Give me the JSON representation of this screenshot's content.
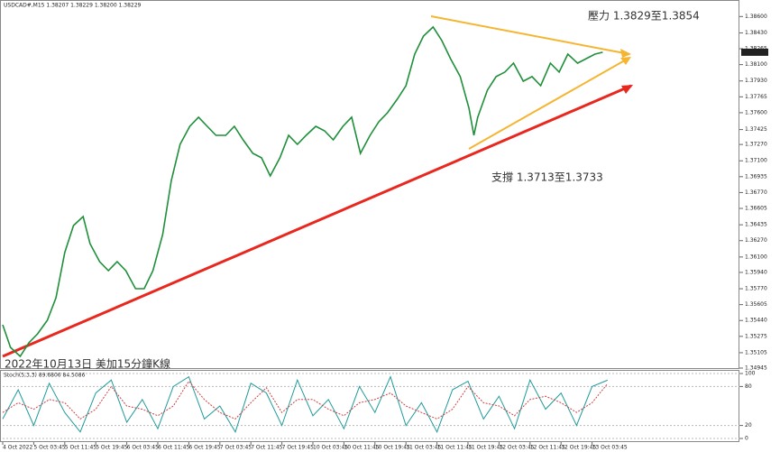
{
  "header": "USDCAD#,M15  1.38207 1.38229 1.38200 1.38229",
  "chart_data": [
    {
      "type": "line",
      "title": "2022年10月13日 美加15分鐘K線",
      "annotations": [
        "壓力 1.3829至1.3854",
        "支撐 1.3713至1.3733"
      ],
      "current_price_label": "1.38229",
      "x": [
        0,
        8,
        18,
        27,
        36,
        46,
        55,
        64,
        73,
        83,
        90,
        100,
        109,
        118,
        127,
        137,
        146,
        155,
        165,
        174,
        183,
        193,
        202,
        211,
        220,
        230,
        239,
        248,
        258,
        267,
        276,
        286,
        295,
        304,
        313,
        323,
        332,
        341,
        351,
        360,
        369,
        379,
        388,
        397,
        407,
        416,
        425,
        434,
        444,
        453,
        462,
        472,
        481,
        486,
        490,
        500,
        509,
        518,
        527,
        537,
        546,
        555,
        565,
        574,
        583,
        593,
        602,
        611,
        619
      ],
      "series": [
        {
          "color": "#1f8f3a",
          "values": [
            1.35395,
            1.35161,
            1.35067,
            1.35208,
            1.35301,
            1.35442,
            1.35677,
            1.36146,
            1.36427,
            1.36521,
            1.36239,
            1.36052,
            1.35958,
            1.36052,
            1.35958,
            1.3577,
            1.3577,
            1.35958,
            1.36333,
            1.36896,
            1.37271,
            1.37459,
            1.37553,
            1.37459,
            1.37365,
            1.37365,
            1.37459,
            1.37318,
            1.37177,
            1.37131,
            1.36943,
            1.37131,
            1.37365,
            1.37271,
            1.37365,
            1.37459,
            1.37412,
            1.37318,
            1.37459,
            1.37553,
            1.37177,
            1.37365,
            1.37506,
            1.376,
            1.3774,
            1.37881,
            1.38209,
            1.38397,
            1.38491,
            1.3835,
            1.38162,
            1.37975,
            1.37646,
            1.37365,
            1.37553,
            1.37834,
            1.37975,
            1.38022,
            1.38115,
            1.37928,
            1.37975,
            1.37881,
            1.38115,
            1.38022,
            1.38209,
            1.38115,
            1.38162,
            1.38209,
            1.38229
          ]
        }
      ],
      "xlim": [
        0,
        760
      ],
      "ylim": [
        1.34945,
        1.38753
      ],
      "yticks": [
        1.34945,
        1.35105,
        1.35275,
        {
          "value": 1.3544,
          "label": "1.35440"
        },
        1.35605,
        {
          "value": 1.3577,
          "label": "1.35770"
        },
        {
          "value": 1.3594,
          "label": "1.35940"
        },
        {
          "value": 1.361,
          "label": "1.36100"
        },
        {
          "value": 1.3627,
          "label": "1.36270"
        },
        1.36435,
        1.36605,
        {
          "value": 1.3677,
          "label": "1.36770"
        },
        1.36935,
        {
          "value": 1.371,
          "label": "1.37100"
        },
        {
          "value": 1.3727,
          "label": "1.37270"
        },
        1.37425,
        {
          "value": 1.376,
          "label": "1.37600"
        },
        1.37765,
        {
          "value": 1.3793,
          "label": "1.37930"
        },
        {
          "value": 1.381,
          "label": "1.38100"
        },
        1.38265,
        {
          "value": 1.3843,
          "label": "1.38430"
        },
        {
          "value": 1.386,
          "label": "1.38600"
        }
      ]
    },
    {
      "type": "line",
      "title": "Stoch(5,3,3) 89.6806 84.5086",
      "x": [
        0,
        16,
        32,
        48,
        64,
        80,
        96,
        112,
        128,
        144,
        160,
        176,
        192,
        208,
        224,
        240,
        256,
        272,
        288,
        304,
        320,
        336,
        352,
        368,
        384,
        400,
        416,
        432,
        448,
        464,
        480,
        496,
        512,
        528,
        544,
        560,
        576,
        592,
        608,
        624
      ],
      "series": [
        {
          "color": "#1f9a9a",
          "values": [
            30,
            75,
            20,
            85,
            40,
            10,
            70,
            90,
            25,
            60,
            15,
            80,
            95,
            30,
            50,
            10,
            85,
            70,
            20,
            90,
            35,
            60,
            15,
            80,
            40,
            95,
            20,
            55,
            10,
            75,
            88,
            30,
            65,
            15,
            90,
            45,
            70,
            20,
            80,
            89.6806
          ]
        },
        {
          "color": "#d04040",
          "values": [
            40,
            55,
            45,
            60,
            55,
            30,
            45,
            80,
            50,
            45,
            35,
            50,
            88,
            60,
            40,
            30,
            55,
            78,
            40,
            60,
            60,
            45,
            35,
            55,
            60,
            70,
            50,
            40,
            30,
            45,
            80,
            55,
            50,
            35,
            60,
            65,
            55,
            40,
            55,
            84.5086
          ]
        }
      ],
      "xlim": [
        0,
        760
      ],
      "ylim": [
        0,
        100
      ],
      "yticks": [
        100,
        80,
        20,
        0
      ],
      "xticks": [
        {
          "value": 0,
          "label": "4 Oct 2022"
        },
        {
          "value": 32,
          "label": "5 Oct 03:45"
        },
        {
          "value": 64,
          "label": "5 Oct 11:45"
        },
        {
          "value": 96,
          "label": "5 Oct 19:45"
        },
        {
          "value": 128,
          "label": "6 Oct 03:45"
        },
        {
          "value": 160,
          "label": "6 Oct 11:45"
        },
        {
          "value": 192,
          "label": "6 Oct 19:45"
        },
        {
          "value": 224,
          "label": "7 Oct 03:45"
        },
        {
          "value": 256,
          "label": "7 Oct 11:45"
        },
        {
          "value": 288,
          "label": "7 Oct 19:45"
        },
        {
          "value": 320,
          "label": "10 Oct 03:45"
        },
        {
          "value": 352,
          "label": "10 Oct 11:45"
        },
        {
          "value": 384,
          "label": "10 Oct 19:45"
        },
        {
          "value": 416,
          "label": "11 Oct 03:45"
        },
        {
          "value": 448,
          "label": "11 Oct 11:45"
        },
        {
          "value": 480,
          "label": "11 Oct 19:45"
        },
        {
          "value": 512,
          "label": "12 Oct 03:45"
        },
        {
          "value": 544,
          "label": "12 Oct 11:45"
        },
        {
          "value": 576,
          "label": "12 Oct 19:45"
        },
        {
          "value": 608,
          "label": "13 Oct 03:45"
        }
      ]
    }
  ]
}
